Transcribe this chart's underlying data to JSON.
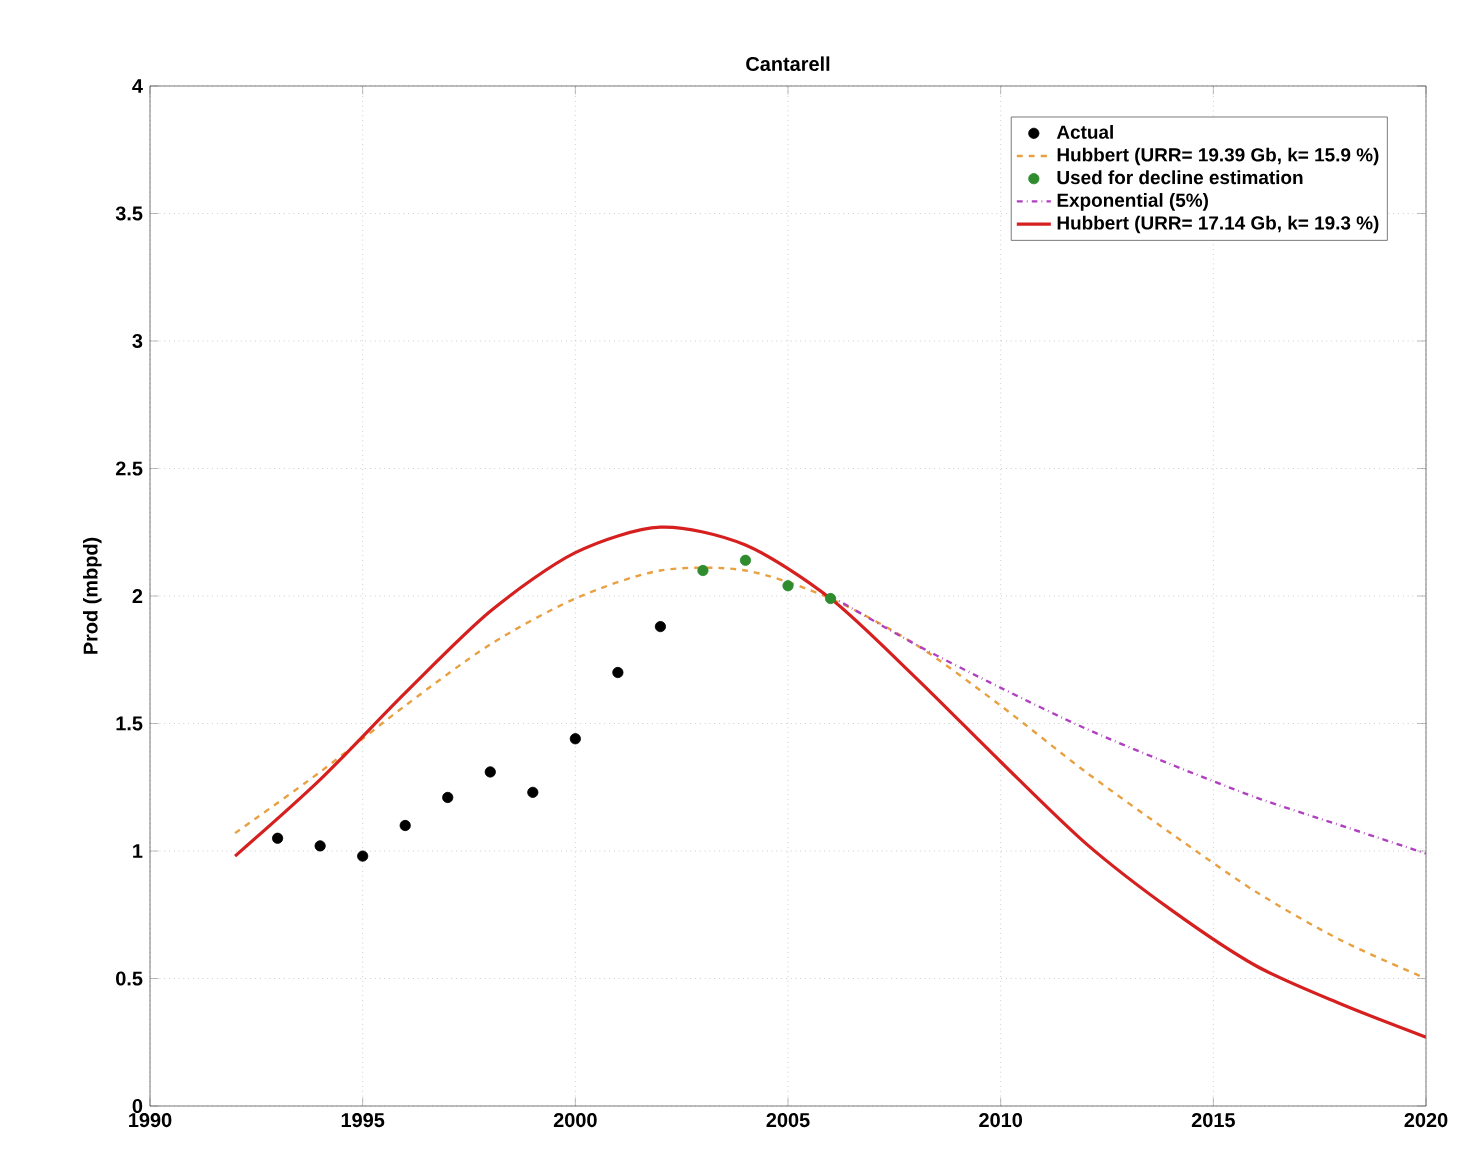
{
  "chart_data": {
    "type": "line",
    "title": "Cantarell",
    "ylabel": "Prod (mbpd)",
    "xlim": [
      1990,
      2020
    ],
    "ylim": [
      0,
      4
    ],
    "xticks": [
      1990,
      1995,
      2000,
      2005,
      2010,
      2015,
      2020
    ],
    "yticks": [
      0,
      0.5,
      1,
      1.5,
      2,
      2.5,
      3,
      3.5,
      4
    ],
    "grid": true,
    "legend": "top right",
    "series": [
      {
        "name": "Actual",
        "type": "scatter",
        "marker": "circle",
        "color": "#000000",
        "x": [
          1993,
          1994,
          1995,
          1996,
          1997,
          1998,
          1999,
          2000,
          2001,
          2002
        ],
        "values": [
          1.05,
          1.02,
          0.98,
          1.1,
          1.21,
          1.31,
          1.23,
          1.44,
          1.7,
          1.88
        ]
      },
      {
        "name": "Hubbert (URR=  19.39 Gb, k=   15.9 %)",
        "line_style": "dashed",
        "color": "#e8a040",
        "x": [
          1992,
          1994,
          1996,
          1998,
          2000,
          2002,
          2004,
          2006,
          2008,
          2010,
          2012,
          2014,
          2016,
          2018,
          2020
        ],
        "values": [
          1.07,
          1.31,
          1.57,
          1.81,
          1.99,
          2.1,
          2.1,
          1.99,
          1.81,
          1.57,
          1.31,
          1.07,
          0.84,
          0.65,
          0.5
        ]
      },
      {
        "name": "Used for decline estimation",
        "type": "scatter",
        "marker": "circle",
        "color": "#2e8b2e",
        "x": [
          2003,
          2004,
          2005,
          2006
        ],
        "values": [
          2.1,
          2.14,
          2.04,
          1.99
        ]
      },
      {
        "name": "Exponential (5%)",
        "line_style": "dashdot",
        "color": "#b040c0",
        "x": [
          2006,
          2008,
          2010,
          2012,
          2014,
          2016,
          2018,
          2020
        ],
        "values": [
          2.0,
          1.81,
          1.64,
          1.48,
          1.34,
          1.21,
          1.1,
          0.99
        ]
      },
      {
        "name": "Hubbert (URR=  17.14 Gb, k=   19.3 %)",
        "line_style": "solid",
        "color": "#d62020",
        "x": [
          1992,
          1994,
          1996,
          1998,
          2000,
          2002,
          2004,
          2006,
          2008,
          2010,
          2012,
          2014,
          2016,
          2018,
          2020
        ],
        "values": [
          0.98,
          1.28,
          1.62,
          1.94,
          2.17,
          2.27,
          2.2,
          1.99,
          1.68,
          1.35,
          1.03,
          0.77,
          0.55,
          0.4,
          0.27
        ]
      }
    ]
  }
}
